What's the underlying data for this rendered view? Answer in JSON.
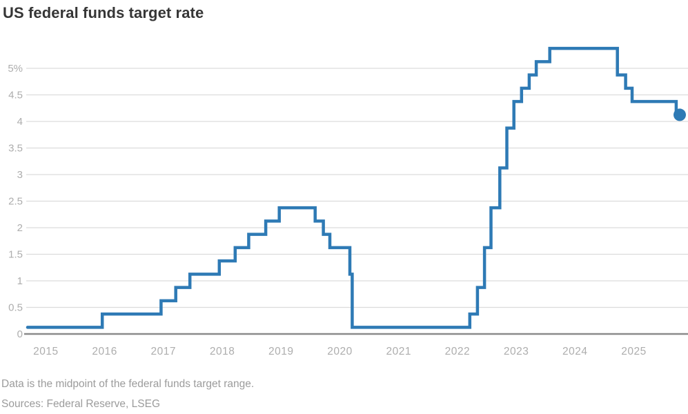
{
  "title": "US federal funds target rate",
  "footer": {
    "note": "Data is the midpoint of the federal funds target range.",
    "sources": "Sources: Federal Reserve, LSEG"
  },
  "chart_data": {
    "type": "line",
    "subtype": "step-after",
    "title": "US federal funds target rate",
    "xlabel": "",
    "ylabel": "",
    "unit": "%",
    "grid": true,
    "legend": "none",
    "xlim": [
      2014.69,
      2025.78
    ],
    "ylim": [
      0,
      5.5
    ],
    "x_ticks": [
      {
        "value": 2015,
        "label": "2015"
      },
      {
        "value": 2016,
        "label": "2016"
      },
      {
        "value": 2017,
        "label": "2017"
      },
      {
        "value": 2018,
        "label": "2018"
      },
      {
        "value": 2019,
        "label": "2019"
      },
      {
        "value": 2020,
        "label": "2020"
      },
      {
        "value": 2021,
        "label": "2021"
      },
      {
        "value": 2022,
        "label": "2022"
      },
      {
        "value": 2023,
        "label": "2023"
      },
      {
        "value": 2024,
        "label": "2024"
      },
      {
        "value": 2025,
        "label": "2025"
      }
    ],
    "y_ticks": [
      {
        "value": 0,
        "label": "0"
      },
      {
        "value": 0.5,
        "label": "0.5"
      },
      {
        "value": 1,
        "label": "1"
      },
      {
        "value": 1.5,
        "label": "1.5"
      },
      {
        "value": 2,
        "label": "2"
      },
      {
        "value": 2.5,
        "label": "2.5"
      },
      {
        "value": 3,
        "label": "3"
      },
      {
        "value": 3.5,
        "label": "3.5"
      },
      {
        "value": 4,
        "label": "4"
      },
      {
        "value": 4.5,
        "label": "4.5"
      },
      {
        "value": 5,
        "label": "5%"
      }
    ],
    "series": [
      {
        "name": "Federal funds target rate midpoint (%)",
        "points": [
          [
            2014.69,
            0.125
          ],
          [
            2015.96,
            0.375
          ],
          [
            2016.96,
            0.625
          ],
          [
            2017.21,
            0.875
          ],
          [
            2017.45,
            1.125
          ],
          [
            2017.95,
            1.375
          ],
          [
            2018.22,
            1.625
          ],
          [
            2018.45,
            1.875
          ],
          [
            2018.74,
            2.125
          ],
          [
            2018.97,
            2.375
          ],
          [
            2019.58,
            2.125
          ],
          [
            2019.72,
            1.875
          ],
          [
            2019.83,
            1.625
          ],
          [
            2020.17,
            1.125
          ],
          [
            2020.21,
            0.125
          ],
          [
            2022.21,
            0.375
          ],
          [
            2022.34,
            0.875
          ],
          [
            2022.46,
            1.625
          ],
          [
            2022.57,
            2.375
          ],
          [
            2022.72,
            3.125
          ],
          [
            2022.84,
            3.875
          ],
          [
            2022.96,
            4.375
          ],
          [
            2023.09,
            4.625
          ],
          [
            2023.22,
            4.875
          ],
          [
            2023.34,
            5.125
          ],
          [
            2023.57,
            5.375
          ],
          [
            2024.72,
            4.875
          ],
          [
            2024.86,
            4.625
          ],
          [
            2024.97,
            4.375
          ],
          [
            2025.72,
            4.125
          ],
          [
            2025.78,
            4.125
          ]
        ]
      }
    ],
    "end_marker": {
      "x": 2025.78,
      "y": 4.125
    },
    "colors": {
      "line": "#2e7ab5",
      "grid": "#dcdcdc",
      "axis": "#8a8a8a",
      "tick_labels": "#adadad",
      "title": "#363636",
      "footnote": "#9b9b9b"
    }
  }
}
